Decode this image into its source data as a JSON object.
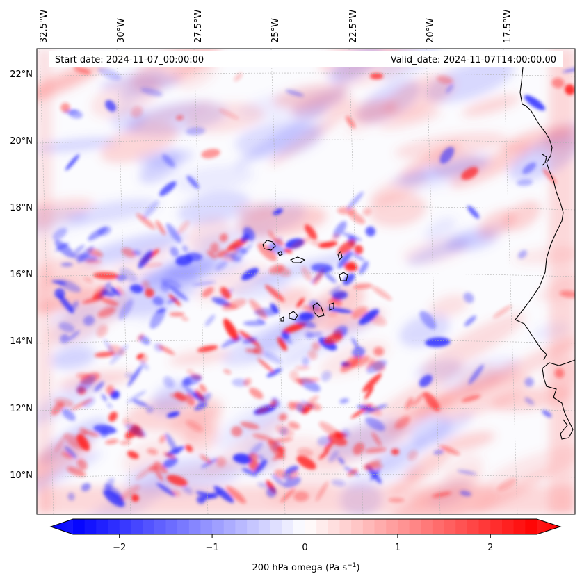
{
  "header": {
    "start_date": "Start date: 2024-11-07_00:00:00",
    "valid_date": "Valid_date: 2024-11-07T14:00:00.00"
  },
  "map": {
    "lon_labels": [
      "32.5°W",
      "30°W",
      "27.5°W",
      "25°W",
      "22.5°W",
      "20°W",
      "17.5°W"
    ],
    "lat_labels": [
      "22°N",
      "20°N",
      "18°N",
      "16°N",
      "14°N",
      "12°N",
      "10°N"
    ],
    "field": "200 hPa omega",
    "colormap": "bwr",
    "colors": {
      "negative": "#0000ff",
      "zero": "#ffffff",
      "positive": "#ff0000",
      "coastline": "#000000",
      "gridline": "#b0b0b0"
    }
  },
  "colorbar": {
    "label": "200 hPa omega (Pa s",
    "label_sup": "−1",
    "label_tail": ")",
    "range": [
      -2.75,
      2.75
    ],
    "ticks": [
      {
        "value": -2,
        "label": "−2"
      },
      {
        "value": -1,
        "label": "−1"
      },
      {
        "value": 0,
        "label": "0"
      },
      {
        "value": 1,
        "label": "1"
      },
      {
        "value": 2,
        "label": "2"
      }
    ],
    "extend": "both"
  }
}
